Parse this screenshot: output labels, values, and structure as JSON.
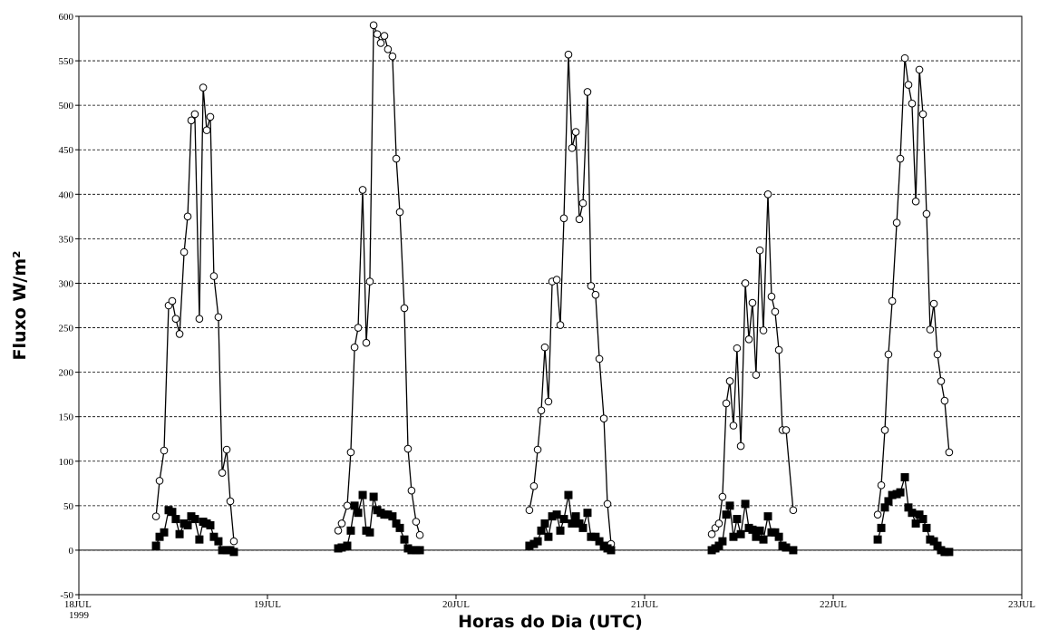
{
  "chart_data": {
    "type": "line",
    "x_label": "Horas do Dia (UTC)",
    "y_label": "Fluxo W/m²",
    "xlim": [
      0,
      5
    ],
    "xticks": [
      {
        "value": 0,
        "label": "18JUL 1999"
      },
      {
        "value": 1,
        "label": "19JUL"
      },
      {
        "value": 2,
        "label": "20JUL"
      },
      {
        "value": 3,
        "label": "21JUL"
      },
      {
        "value": 4,
        "label": "22JUL"
      },
      {
        "value": 5,
        "label": "23JUL"
      }
    ],
    "ylim": [
      -50,
      600
    ],
    "yticks": [
      -50,
      0,
      50,
      100,
      150,
      200,
      250,
      300,
      350,
      400,
      450,
      500,
      550,
      600
    ],
    "grid": true,
    "x": [
      0.409,
      0.428,
      0.452,
      0.476,
      0.495,
      0.514,
      0.534,
      0.558,
      0.577,
      0.596,
      0.615,
      0.639,
      0.659,
      0.678,
      0.697,
      0.716,
      0.74,
      0.76,
      0.784,
      0.803,
      0.822,
      null,
      1.375,
      1.394,
      1.423,
      1.442,
      1.462,
      1.481,
      1.505,
      1.524,
      1.543,
      1.563,
      1.582,
      1.601,
      1.62,
      1.639,
      1.663,
      1.683,
      1.702,
      1.726,
      1.745,
      1.764,
      1.788,
      1.808,
      null,
      2.389,
      2.413,
      2.433,
      2.452,
      2.471,
      2.49,
      2.51,
      2.534,
      2.553,
      2.572,
      2.596,
      2.615,
      2.635,
      2.654,
      2.673,
      2.697,
      2.716,
      2.74,
      2.76,
      2.784,
      2.803,
      2.822,
      null,
      3.356,
      3.375,
      3.394,
      3.413,
      3.433,
      3.452,
      3.471,
      3.49,
      3.51,
      3.534,
      3.553,
      3.572,
      3.591,
      3.611,
      3.63,
      3.654,
      3.673,
      3.692,
      3.712,
      3.731,
      3.75,
      3.788,
      null,
      4.236,
      4.255,
      4.274,
      4.293,
      4.313,
      4.337,
      4.356,
      4.38,
      4.399,
      4.418,
      4.438,
      4.457,
      4.476,
      4.495,
      4.514,
      4.534,
      4.553,
      4.572,
      4.591,
      4.615
    ],
    "series": [
      {
        "color": "#000000",
        "marker": "circle",
        "marker_fill": "#ffffff",
        "values": [
          38,
          78,
          112,
          275,
          280,
          260,
          243,
          335,
          375,
          483,
          490,
          260,
          520,
          472,
          487,
          308,
          262,
          87,
          113,
          55,
          10,
          null,
          22,
          30,
          50,
          110,
          228,
          250,
          405,
          233,
          302,
          590,
          580,
          570,
          578,
          563,
          555,
          440,
          380,
          272,
          114,
          67,
          32,
          17,
          null,
          45,
          72,
          113,
          157,
          228,
          167,
          302,
          304,
          253,
          373,
          557,
          452,
          470,
          372,
          390,
          515,
          297,
          287,
          215,
          148,
          52,
          7,
          null,
          18,
          25,
          30,
          60,
          165,
          190,
          140,
          227,
          117,
          300,
          237,
          278,
          197,
          337,
          247,
          400,
          285,
          268,
          225,
          135,
          135,
          45,
          null,
          40,
          73,
          135,
          220,
          280,
          368,
          440,
          553,
          523,
          502,
          392,
          540,
          490,
          378,
          248,
          277,
          220,
          190,
          168,
          110
        ]
      },
      {
        "color": "#000000",
        "marker": "square",
        "marker_fill": "#000000",
        "values": [
          5,
          15,
          20,
          45,
          43,
          35,
          18,
          30,
          28,
          38,
          35,
          12,
          32,
          30,
          28,
          15,
          10,
          0,
          0,
          0,
          -2,
          null,
          2,
          3,
          5,
          22,
          50,
          42,
          62,
          22,
          20,
          60,
          45,
          42,
          40,
          40,
          38,
          30,
          25,
          12,
          2,
          0,
          0,
          0,
          null,
          5,
          7,
          10,
          22,
          30,
          15,
          38,
          40,
          22,
          35,
          62,
          30,
          38,
          30,
          25,
          42,
          15,
          15,
          10,
          5,
          2,
          0,
          null,
          0,
          2,
          5,
          10,
          40,
          50,
          15,
          35,
          18,
          52,
          25,
          23,
          15,
          22,
          12,
          38,
          20,
          20,
          15,
          5,
          3,
          0,
          null,
          12,
          25,
          48,
          55,
          62,
          63,
          65,
          82,
          48,
          42,
          30,
          40,
          35,
          25,
          12,
          10,
          5,
          0,
          -2,
          -2
        ]
      }
    ]
  }
}
